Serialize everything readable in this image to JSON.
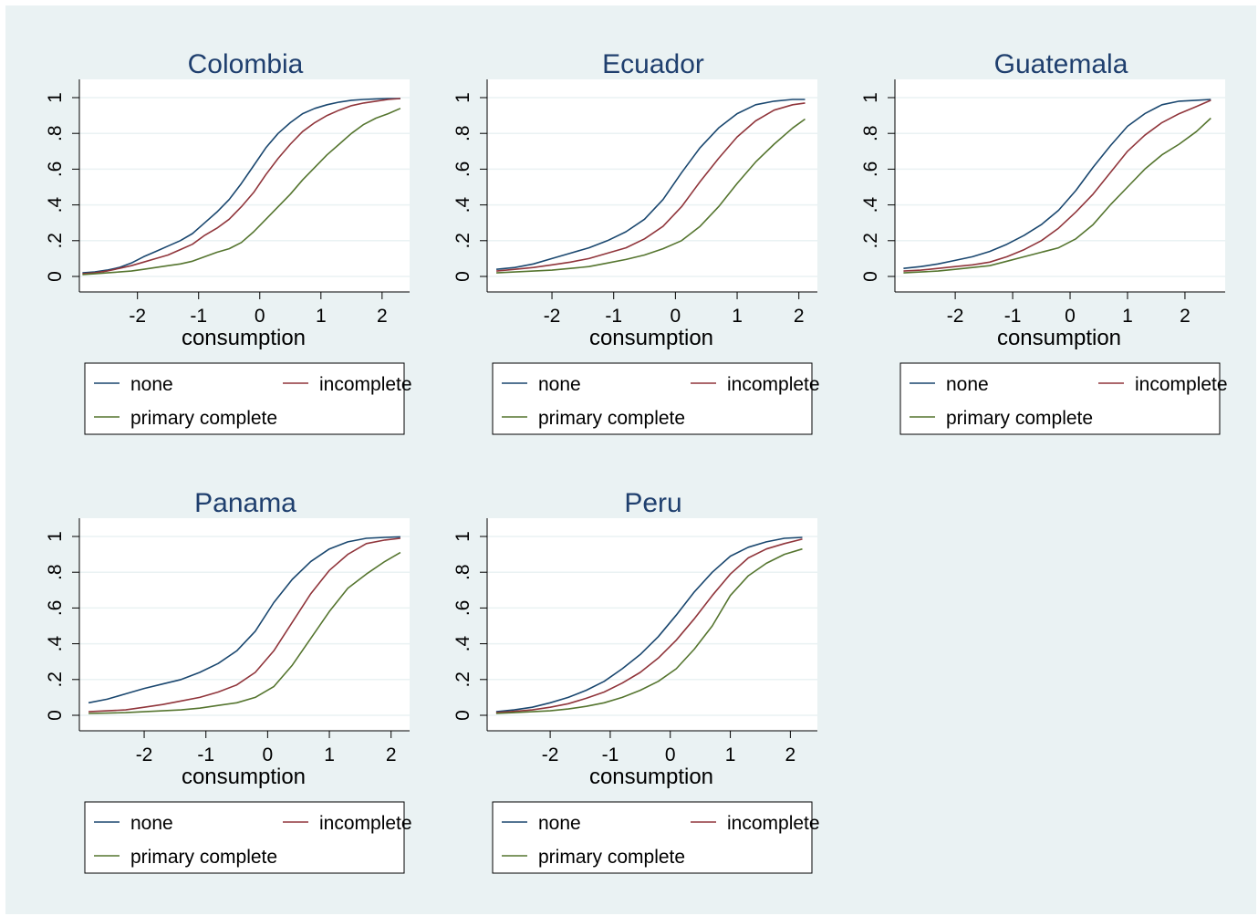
{
  "colors": {
    "background": "#eaf2f3",
    "plot_area": "#ffffff",
    "gridline": "#eaf2f3",
    "title": "#1f3f6e",
    "none": "#1a476f",
    "incomplete": "#90353b",
    "primary_complete": "#55752f"
  },
  "legend_labels": [
    "none",
    "incomplete",
    "primary complete"
  ],
  "chart_data": [
    {
      "type": "line",
      "title": "Colombia",
      "xlabel": "consumption",
      "ylabel": "",
      "xticks": [
        "-2",
        "-1",
        "0",
        "1",
        "2"
      ],
      "yticks": [
        "0",
        ".2",
        ".4",
        ".6",
        ".8",
        "1"
      ],
      "xlim": [
        -2.95,
        2.45
      ],
      "ylim": [
        0,
        1
      ],
      "grid": true,
      "legend": "bottom",
      "series": [
        {
          "name": "none",
          "x": [
            -2.9,
            -2.7,
            -2.5,
            -2.3,
            -2.1,
            -1.9,
            -1.7,
            -1.5,
            -1.3,
            -1.1,
            -0.9,
            -0.7,
            -0.5,
            -0.3,
            -0.1,
            0.1,
            0.3,
            0.5,
            0.7,
            0.9,
            1.1,
            1.3,
            1.5,
            1.7,
            1.9,
            2.1,
            2.3
          ],
          "y": [
            0.02,
            0.025,
            0.035,
            0.05,
            0.075,
            0.11,
            0.14,
            0.17,
            0.2,
            0.24,
            0.3,
            0.36,
            0.43,
            0.52,
            0.62,
            0.72,
            0.8,
            0.86,
            0.91,
            0.94,
            0.96,
            0.975,
            0.985,
            0.99,
            0.993,
            0.995,
            0.995
          ]
        },
        {
          "name": "incomplete",
          "x": [
            -2.9,
            -2.7,
            -2.5,
            -2.3,
            -2.1,
            -1.9,
            -1.7,
            -1.5,
            -1.3,
            -1.1,
            -0.9,
            -0.7,
            -0.5,
            -0.3,
            -0.1,
            0.1,
            0.3,
            0.5,
            0.7,
            0.9,
            1.1,
            1.3,
            1.5,
            1.7,
            1.9,
            2.1,
            2.3
          ],
          "y": [
            0.015,
            0.02,
            0.03,
            0.045,
            0.06,
            0.08,
            0.1,
            0.12,
            0.15,
            0.18,
            0.23,
            0.27,
            0.32,
            0.39,
            0.47,
            0.57,
            0.66,
            0.74,
            0.81,
            0.86,
            0.9,
            0.93,
            0.955,
            0.97,
            0.98,
            0.99,
            0.995
          ]
        },
        {
          "name": "primary complete",
          "x": [
            -2.9,
            -2.7,
            -2.5,
            -2.3,
            -2.1,
            -1.9,
            -1.7,
            -1.5,
            -1.3,
            -1.1,
            -0.9,
            -0.7,
            -0.5,
            -0.3,
            -0.1,
            0.1,
            0.3,
            0.5,
            0.7,
            0.9,
            1.1,
            1.3,
            1.5,
            1.7,
            1.9,
            2.1,
            2.3
          ],
          "y": [
            0.01,
            0.015,
            0.02,
            0.025,
            0.03,
            0.04,
            0.05,
            0.06,
            0.07,
            0.085,
            0.11,
            0.135,
            0.155,
            0.19,
            0.25,
            0.32,
            0.39,
            0.46,
            0.54,
            0.61,
            0.68,
            0.74,
            0.8,
            0.85,
            0.885,
            0.91,
            0.94
          ]
        }
      ]
    },
    {
      "type": "line",
      "title": "Ecuador",
      "xlabel": "consumption",
      "ylabel": "",
      "xticks": [
        "-2",
        "-1",
        "0",
        "1",
        "2"
      ],
      "yticks": [
        "0",
        ".2",
        ".4",
        ".6",
        ".8",
        "1"
      ],
      "xlim": [
        -3.05,
        2.3
      ],
      "ylim": [
        0,
        1
      ],
      "grid": true,
      "legend": "bottom",
      "series": [
        {
          "name": "none",
          "x": [
            -2.9,
            -2.6,
            -2.3,
            -2.0,
            -1.7,
            -1.4,
            -1.1,
            -0.8,
            -0.5,
            -0.2,
            0.1,
            0.4,
            0.7,
            1.0,
            1.3,
            1.6,
            1.9,
            2.1
          ],
          "y": [
            0.04,
            0.05,
            0.07,
            0.1,
            0.13,
            0.16,
            0.2,
            0.25,
            0.32,
            0.43,
            0.58,
            0.72,
            0.83,
            0.91,
            0.96,
            0.98,
            0.99,
            0.99
          ]
        },
        {
          "name": "incomplete",
          "x": [
            -2.9,
            -2.6,
            -2.3,
            -2.0,
            -1.7,
            -1.4,
            -1.1,
            -0.8,
            -0.5,
            -0.2,
            0.1,
            0.4,
            0.7,
            1.0,
            1.3,
            1.6,
            1.9,
            2.1
          ],
          "y": [
            0.03,
            0.04,
            0.05,
            0.065,
            0.08,
            0.1,
            0.13,
            0.16,
            0.21,
            0.28,
            0.39,
            0.53,
            0.66,
            0.78,
            0.87,
            0.93,
            0.96,
            0.97
          ]
        },
        {
          "name": "primary complete",
          "x": [
            -2.9,
            -2.6,
            -2.3,
            -2.0,
            -1.7,
            -1.4,
            -1.1,
            -0.8,
            -0.5,
            -0.2,
            0.1,
            0.4,
            0.7,
            1.0,
            1.3,
            1.6,
            1.9,
            2.1
          ],
          "y": [
            0.02,
            0.025,
            0.03,
            0.035,
            0.045,
            0.055,
            0.075,
            0.095,
            0.12,
            0.155,
            0.2,
            0.28,
            0.39,
            0.52,
            0.64,
            0.74,
            0.83,
            0.88
          ]
        }
      ]
    },
    {
      "type": "line",
      "title": "Guatemala",
      "xlabel": "consumption",
      "ylabel": "",
      "xticks": [
        "-2",
        "-1",
        "0",
        "1",
        "2"
      ],
      "yticks": [
        "0",
        ".2",
        ".4",
        ".6",
        ".8",
        "1"
      ],
      "xlim": [
        -3.05,
        2.7
      ],
      "ylim": [
        0,
        1
      ],
      "grid": true,
      "legend": "bottom",
      "series": [
        {
          "name": "none",
          "x": [
            -2.9,
            -2.6,
            -2.3,
            -2.0,
            -1.7,
            -1.4,
            -1.1,
            -0.8,
            -0.5,
            -0.2,
            0.1,
            0.4,
            0.7,
            1.0,
            1.3,
            1.6,
            1.9,
            2.2,
            2.45
          ],
          "y": [
            0.045,
            0.055,
            0.07,
            0.09,
            0.11,
            0.14,
            0.18,
            0.23,
            0.29,
            0.37,
            0.48,
            0.61,
            0.73,
            0.84,
            0.91,
            0.96,
            0.98,
            0.985,
            0.99
          ]
        },
        {
          "name": "incomplete",
          "x": [
            -2.9,
            -2.6,
            -2.3,
            -2.0,
            -1.7,
            -1.4,
            -1.1,
            -0.8,
            -0.5,
            -0.2,
            0.1,
            0.4,
            0.7,
            1.0,
            1.3,
            1.6,
            1.9,
            2.2,
            2.45
          ],
          "y": [
            0.03,
            0.035,
            0.045,
            0.055,
            0.065,
            0.08,
            0.11,
            0.15,
            0.2,
            0.27,
            0.36,
            0.46,
            0.58,
            0.7,
            0.79,
            0.86,
            0.91,
            0.95,
            0.985
          ]
        },
        {
          "name": "primary complete",
          "x": [
            -2.9,
            -2.6,
            -2.3,
            -2.0,
            -1.7,
            -1.4,
            -1.1,
            -0.8,
            -0.5,
            -0.2,
            0.1,
            0.4,
            0.7,
            1.0,
            1.3,
            1.6,
            1.9,
            2.2,
            2.45
          ],
          "y": [
            0.02,
            0.025,
            0.03,
            0.04,
            0.05,
            0.06,
            0.085,
            0.11,
            0.135,
            0.16,
            0.21,
            0.29,
            0.4,
            0.5,
            0.6,
            0.68,
            0.74,
            0.81,
            0.885
          ]
        }
      ]
    },
    {
      "type": "line",
      "title": "Panama",
      "xlabel": "consumption",
      "ylabel": "",
      "xticks": [
        "-2",
        "-1",
        "0",
        "1",
        "2"
      ],
      "yticks": [
        "0",
        ".2",
        ".4",
        ".6",
        ".8",
        "1"
      ],
      "xlim": [
        -3.05,
        2.3
      ],
      "ylim": [
        0,
        1
      ],
      "grid": true,
      "legend": "bottom",
      "series": [
        {
          "name": "none",
          "x": [
            -2.9,
            -2.6,
            -2.3,
            -2.0,
            -1.7,
            -1.4,
            -1.1,
            -0.8,
            -0.5,
            -0.2,
            0.1,
            0.4,
            0.7,
            1.0,
            1.3,
            1.6,
            1.9,
            2.15
          ],
          "y": [
            0.07,
            0.09,
            0.12,
            0.15,
            0.175,
            0.2,
            0.24,
            0.29,
            0.36,
            0.47,
            0.63,
            0.76,
            0.86,
            0.93,
            0.97,
            0.99,
            0.995,
            0.998
          ]
        },
        {
          "name": "incomplete",
          "x": [
            -2.9,
            -2.6,
            -2.3,
            -2.0,
            -1.7,
            -1.4,
            -1.1,
            -0.8,
            -0.5,
            -0.2,
            0.1,
            0.4,
            0.7,
            1.0,
            1.3,
            1.6,
            1.9,
            2.15
          ],
          "y": [
            0.02,
            0.025,
            0.03,
            0.045,
            0.06,
            0.08,
            0.1,
            0.13,
            0.17,
            0.24,
            0.36,
            0.52,
            0.68,
            0.81,
            0.9,
            0.96,
            0.98,
            0.99
          ]
        },
        {
          "name": "primary complete",
          "x": [
            -2.9,
            -2.6,
            -2.3,
            -2.0,
            -1.7,
            -1.4,
            -1.1,
            -0.8,
            -0.5,
            -0.2,
            0.1,
            0.4,
            0.7,
            1.0,
            1.3,
            1.6,
            1.9,
            2.15
          ],
          "y": [
            0.01,
            0.012,
            0.015,
            0.02,
            0.025,
            0.03,
            0.04,
            0.055,
            0.07,
            0.1,
            0.16,
            0.28,
            0.43,
            0.58,
            0.71,
            0.79,
            0.86,
            0.91
          ]
        }
      ]
    },
    {
      "type": "line",
      "title": "Peru",
      "xlabel": "consumption",
      "ylabel": "",
      "xticks": [
        "-2",
        "-1",
        "0",
        "1",
        "2"
      ],
      "yticks": [
        "0",
        ".2",
        ".4",
        ".6",
        ".8",
        "1"
      ],
      "xlim": [
        -3.05,
        2.45
      ],
      "ylim": [
        0,
        1
      ],
      "grid": true,
      "legend": "bottom",
      "series": [
        {
          "name": "none",
          "x": [
            -2.9,
            -2.6,
            -2.3,
            -2.0,
            -1.7,
            -1.4,
            -1.1,
            -0.8,
            -0.5,
            -0.2,
            0.1,
            0.4,
            0.7,
            1.0,
            1.3,
            1.6,
            1.9,
            2.2
          ],
          "y": [
            0.02,
            0.03,
            0.045,
            0.07,
            0.1,
            0.14,
            0.19,
            0.26,
            0.34,
            0.44,
            0.56,
            0.69,
            0.8,
            0.89,
            0.94,
            0.97,
            0.99,
            0.995
          ]
        },
        {
          "name": "incomplete",
          "x": [
            -2.9,
            -2.6,
            -2.3,
            -2.0,
            -1.7,
            -1.4,
            -1.1,
            -0.8,
            -0.5,
            -0.2,
            0.1,
            0.4,
            0.7,
            1.0,
            1.3,
            1.6,
            1.9,
            2.2
          ],
          "y": [
            0.015,
            0.022,
            0.03,
            0.045,
            0.065,
            0.095,
            0.13,
            0.18,
            0.24,
            0.32,
            0.42,
            0.54,
            0.67,
            0.79,
            0.88,
            0.93,
            0.96,
            0.985
          ]
        },
        {
          "name": "primary complete",
          "x": [
            -2.9,
            -2.6,
            -2.3,
            -2.0,
            -1.7,
            -1.4,
            -1.1,
            -0.8,
            -0.5,
            -0.2,
            0.1,
            0.4,
            0.7,
            1.0,
            1.3,
            1.6,
            1.9,
            2.2
          ],
          "y": [
            0.01,
            0.015,
            0.02,
            0.025,
            0.035,
            0.05,
            0.07,
            0.1,
            0.14,
            0.19,
            0.26,
            0.37,
            0.5,
            0.67,
            0.78,
            0.85,
            0.9,
            0.93
          ]
        }
      ]
    }
  ]
}
